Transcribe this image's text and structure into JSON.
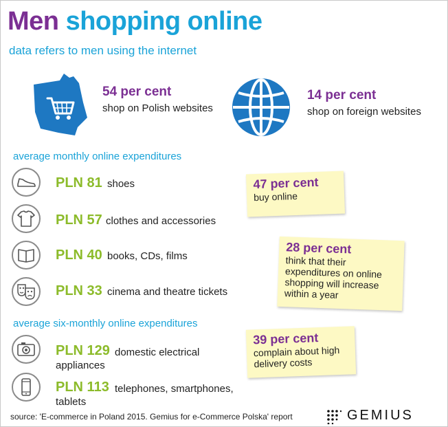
{
  "title": {
    "word1": "Men",
    "word2": "shopping online"
  },
  "subtitle": "data refers to men using the internet",
  "top_stats": {
    "polish": {
      "value": "54 per cent",
      "label": "shop on Polish websites",
      "icon": "poland-cart-icon"
    },
    "foreign": {
      "value": "14 per cent",
      "label": "shop on foreign websites",
      "icon": "globe-icon"
    }
  },
  "monthly": {
    "header": "average monthly online expenditures",
    "items": [
      {
        "amount": "PLN 81",
        "label": "shoes",
        "icon": "shoe-icon"
      },
      {
        "amount": "PLN 57",
        "label": "clothes and accessories",
        "icon": "tshirt-icon"
      },
      {
        "amount": "PLN 40",
        "label": "books, CDs, films",
        "icon": "book-icon"
      },
      {
        "amount": "PLN 33",
        "label": "cinema and theatre tickets",
        "icon": "theatre-masks-icon"
      }
    ]
  },
  "sixmonthly": {
    "header": "average six-monthly online expenditures",
    "items": [
      {
        "amount": "PLN 129",
        "label_line1": "domestic electrical",
        "label_line2": "appliances",
        "icon": "camera-icon"
      },
      {
        "amount": "PLN 113",
        "label_line1": "telephones, smartphones,",
        "label_line2": "tablets",
        "icon": "smartphone-icon"
      }
    ]
  },
  "notes": [
    {
      "value": "47 per cent",
      "text": "buy online"
    },
    {
      "value": "28 per cent",
      "text": "think that their expenditures on online shopping will increase within a year"
    },
    {
      "value": "39 per cent",
      "text": "complain about high delivery costs"
    }
  ],
  "source": "source: 'E-commerce in Poland 2015. Gemius for e-Commerce Polska' report",
  "logo": "GEMIUS",
  "colors": {
    "purple": "#7b2f93",
    "blue": "#1aa3d8",
    "green": "#8cbb2a",
    "note_yellow": "#fdf9c4",
    "icon_blue": "#1e78c2"
  }
}
